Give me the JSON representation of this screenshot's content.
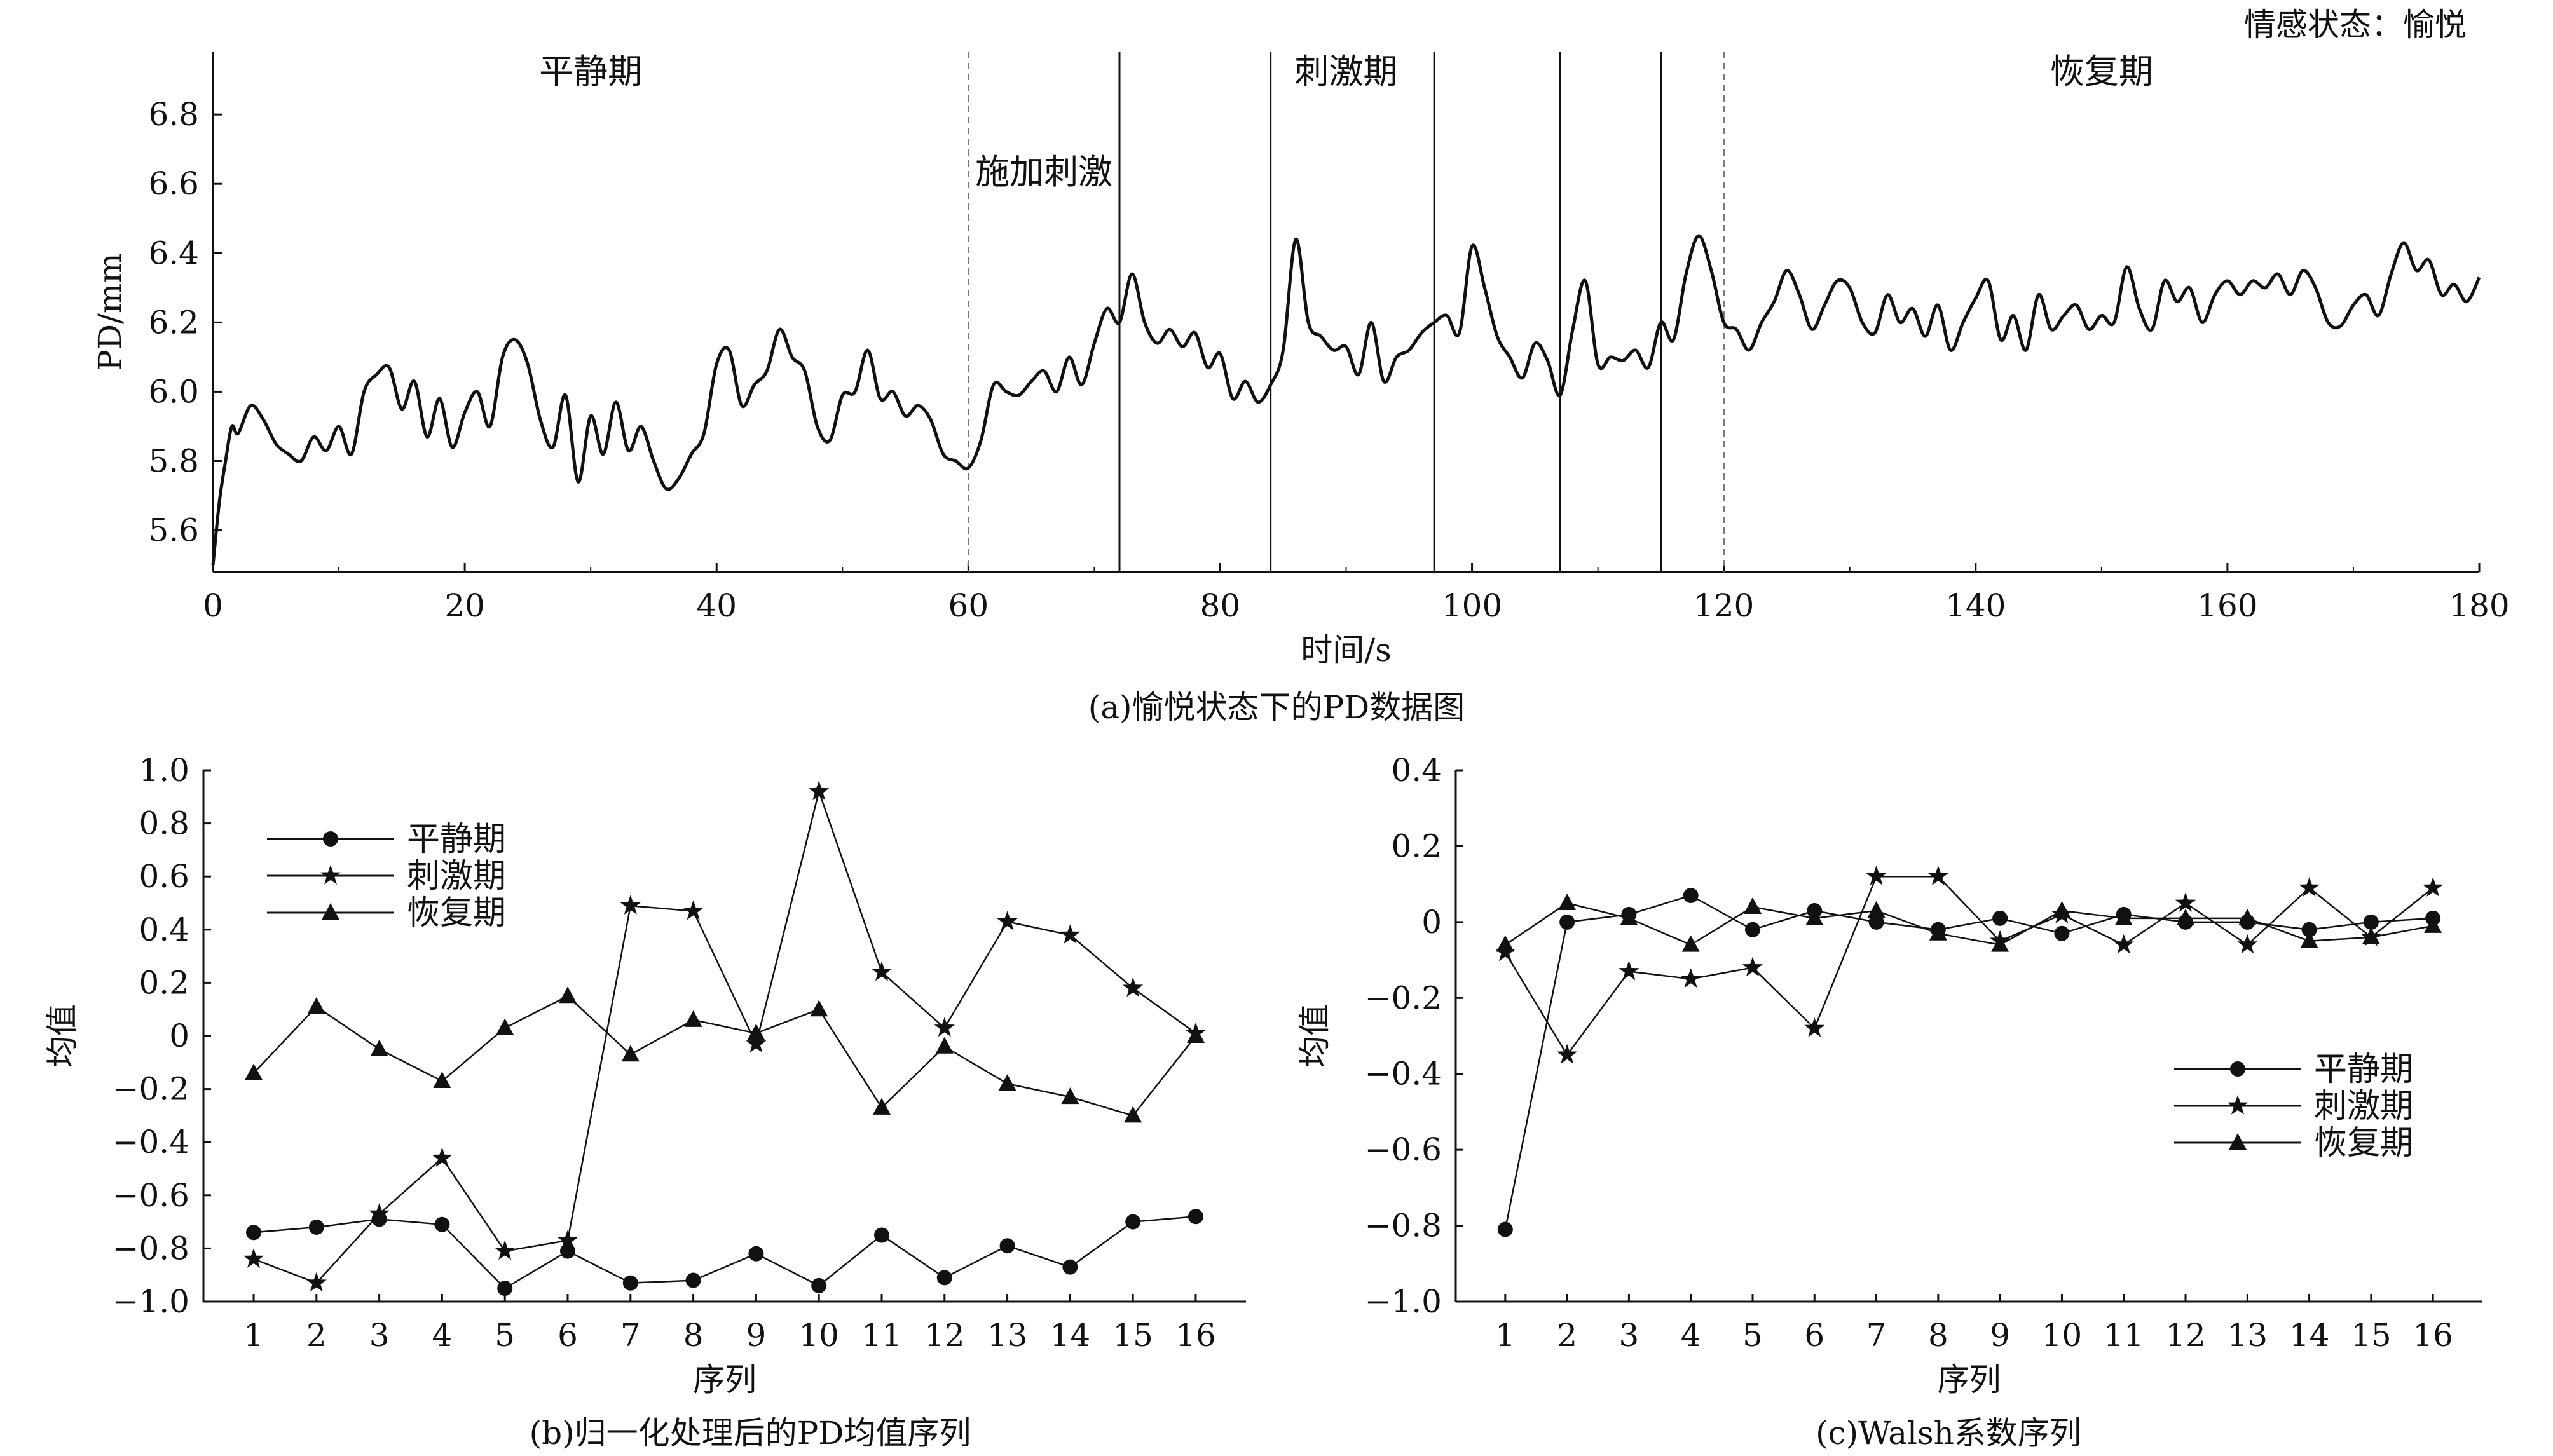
{
  "header": {
    "emotion_state": "情感状态：愉悦"
  },
  "chart_data": [
    {
      "id": "a",
      "type": "line",
      "caption": "(a)愉悦状态下的PD数据图",
      "xlabel": "时间/s",
      "ylabel": "PD/mm",
      "xlim": [
        0,
        180
      ],
      "ylim": [
        5.48,
        6.98
      ],
      "xticks": [
        0,
        20,
        40,
        60,
        80,
        100,
        120,
        140,
        160,
        180
      ],
      "yticks": [
        5.6,
        5.8,
        6.0,
        6.2,
        6.4,
        6.6,
        6.8
      ],
      "phase_labels": [
        {
          "text": "平静期",
          "x": 30,
          "y": 6.89
        },
        {
          "text": "施加刺激",
          "x": 66,
          "y": 6.6
        },
        {
          "text": "刺激期",
          "x": 90,
          "y": 6.89
        },
        {
          "text": "恢复期",
          "x": 150,
          "y": 6.89
        }
      ],
      "dashed_markers": [
        60,
        120
      ],
      "solid_markers": [
        72,
        84,
        97,
        107,
        115
      ],
      "series": [
        {
          "x": [
            0,
            0.5,
            1,
            1.5,
            2,
            3,
            4,
            5,
            6,
            7,
            8,
            9,
            10,
            11,
            12,
            13,
            14,
            15,
            16,
            17,
            18,
            19,
            20,
            21,
            22,
            23,
            24,
            25,
            26,
            27,
            28,
            29,
            30,
            31,
            32,
            33,
            34,
            35,
            36,
            37,
            38,
            39,
            40,
            41,
            42,
            43,
            44,
            45,
            46,
            47,
            48,
            49,
            50,
            51,
            52,
            53,
            54,
            55,
            56,
            57,
            58,
            59,
            60,
            61,
            62,
            63,
            64,
            65,
            66,
            67,
            68,
            69,
            70,
            71,
            72,
            73,
            74,
            75,
            76,
            77,
            78,
            79,
            80,
            81,
            82,
            83,
            84,
            85,
            86,
            87,
            88,
            89,
            90,
            91,
            92,
            93,
            94,
            95,
            96,
            97,
            98,
            99,
            100,
            101,
            102,
            103,
            104,
            105,
            106,
            107,
            108,
            109,
            110,
            111,
            112,
            113,
            114,
            115,
            116,
            117,
            118,
            119,
            120,
            121,
            122,
            123,
            124,
            125,
            126,
            127,
            128,
            129,
            130,
            131,
            132,
            133,
            134,
            135,
            136,
            137,
            138,
            139,
            140,
            141,
            142,
            143,
            144,
            145,
            146,
            147,
            148,
            149,
            150,
            151,
            152,
            153,
            154,
            155,
            156,
            157,
            158,
            159,
            160,
            161,
            162,
            163,
            164,
            165,
            166,
            167,
            168,
            169,
            170,
            171,
            172,
            173,
            174,
            175,
            176,
            177,
            178,
            179,
            180
          ],
          "y": [
            5.5,
            5.68,
            5.8,
            5.9,
            5.88,
            5.96,
            5.92,
            5.85,
            5.82,
            5.8,
            5.87,
            5.83,
            5.9,
            5.82,
            6.0,
            6.05,
            6.07,
            5.95,
            6.03,
            5.87,
            5.98,
            5.84,
            5.94,
            6.0,
            5.9,
            6.1,
            6.15,
            6.08,
            5.92,
            5.84,
            5.99,
            5.74,
            5.93,
            5.82,
            5.97,
            5.83,
            5.9,
            5.8,
            5.72,
            5.75,
            5.82,
            5.88,
            6.08,
            6.12,
            5.96,
            6.02,
            6.06,
            6.18,
            6.1,
            6.06,
            5.9,
            5.86,
            5.99,
            6.0,
            6.12,
            5.98,
            6.0,
            5.93,
            5.96,
            5.92,
            5.82,
            5.8,
            5.78,
            5.86,
            6.02,
            6.0,
            5.99,
            6.03,
            6.06,
            6.0,
            6.1,
            6.02,
            6.14,
            6.24,
            6.2,
            6.34,
            6.2,
            6.14,
            6.18,
            6.13,
            6.17,
            6.07,
            6.11,
            5.98,
            6.03,
            5.97,
            6.02,
            6.12,
            6.44,
            6.2,
            6.16,
            6.12,
            6.13,
            6.05,
            6.2,
            6.03,
            6.1,
            6.12,
            6.17,
            6.2,
            6.22,
            6.17,
            6.42,
            6.3,
            6.16,
            6.1,
            6.04,
            6.14,
            6.09,
            5.99,
            6.18,
            6.32,
            6.08,
            6.1,
            6.09,
            6.12,
            6.07,
            6.2,
            6.15,
            6.34,
            6.45,
            6.35,
            6.2,
            6.18,
            6.12,
            6.2,
            6.26,
            6.35,
            6.28,
            6.18,
            6.25,
            6.32,
            6.3,
            6.2,
            6.17,
            6.28,
            6.2,
            6.24,
            6.16,
            6.25,
            6.12,
            6.2,
            6.27,
            6.32,
            6.15,
            6.22,
            6.12,
            6.28,
            6.18,
            6.22,
            6.25,
            6.18,
            6.22,
            6.2,
            6.36,
            6.24,
            6.18,
            6.32,
            6.26,
            6.3,
            6.2,
            6.28,
            6.32,
            6.28,
            6.32,
            6.3,
            6.34,
            6.28,
            6.35,
            6.3,
            6.2,
            6.19,
            6.25,
            6.28,
            6.22,
            6.34,
            6.43,
            6.35,
            6.38,
            6.28,
            6.31,
            6.26,
            6.33
          ]
        }
      ]
    },
    {
      "id": "b",
      "type": "line",
      "caption": "(b)归一化处理后的PD均值序列",
      "xlabel": "序列",
      "ylabel": "均值",
      "xlim": [
        0.2,
        16.8
      ],
      "ylim": [
        -1.0,
        1.0
      ],
      "categories": [
        1,
        2,
        3,
        4,
        5,
        6,
        7,
        8,
        9,
        10,
        11,
        12,
        13,
        14,
        15,
        16
      ],
      "yticks": [
        -1.0,
        -0.8,
        -0.6,
        -0.4,
        -0.2,
        0,
        0.2,
        0.4,
        0.6,
        0.8,
        1.0
      ],
      "ytick_labels": [
        "−1.0",
        "−0.8",
        "−0.6",
        "−0.4",
        "−0.2",
        "0",
        "0.2",
        "0.4",
        "0.6",
        "0.8",
        "1.0"
      ],
      "legend_position": "top-left",
      "series": [
        {
          "name": "平静期",
          "marker": "circle",
          "values": [
            -0.74,
            -0.72,
            -0.69,
            -0.71,
            -0.95,
            -0.81,
            -0.93,
            -0.92,
            -0.82,
            -0.94,
            -0.75,
            -0.91,
            -0.79,
            -0.87,
            -0.7,
            -0.68
          ]
        },
        {
          "name": "刺激期",
          "marker": "star",
          "values": [
            -0.84,
            -0.93,
            -0.67,
            -0.46,
            -0.81,
            -0.77,
            0.49,
            0.47,
            -0.03,
            0.92,
            0.24,
            0.03,
            0.43,
            0.38,
            0.18,
            0.01
          ]
        },
        {
          "name": "恢复期",
          "marker": "triangle",
          "values": [
            -0.14,
            0.11,
            -0.05,
            -0.17,
            0.03,
            0.15,
            -0.07,
            0.06,
            0.01,
            0.1,
            -0.27,
            -0.04,
            -0.18,
            -0.23,
            -0.3,
            0.0
          ]
        }
      ]
    },
    {
      "id": "c",
      "type": "line",
      "caption": "(c)Walsh系数序列",
      "xlabel": "序列",
      "ylabel": "均值",
      "xlim": [
        0.2,
        16.8
      ],
      "ylim": [
        -1.0,
        0.4
      ],
      "categories": [
        1,
        2,
        3,
        4,
        5,
        6,
        7,
        8,
        9,
        10,
        11,
        12,
        13,
        14,
        15,
        16
      ],
      "yticks": [
        -1.0,
        -0.8,
        -0.6,
        -0.4,
        -0.2,
        0,
        0.2,
        0.4
      ],
      "ytick_labels": [
        "−1.0",
        "−0.8",
        "−0.6",
        "−0.4",
        "−0.2",
        "0",
        "0.2",
        "0.4"
      ],
      "legend_position": "center-right",
      "series": [
        {
          "name": "平静期",
          "marker": "circle",
          "values": [
            -0.81,
            0.0,
            0.02,
            0.07,
            -0.02,
            0.03,
            0.0,
            -0.02,
            0.01,
            -0.03,
            0.02,
            0.0,
            0.0,
            -0.02,
            0.0,
            0.01
          ]
        },
        {
          "name": "刺激期",
          "marker": "star",
          "values": [
            -0.08,
            -0.35,
            -0.13,
            -0.15,
            -0.12,
            -0.28,
            0.12,
            0.12,
            -0.05,
            0.02,
            -0.06,
            0.05,
            -0.06,
            0.09,
            -0.04,
            0.09
          ]
        },
        {
          "name": "恢复期",
          "marker": "triangle",
          "values": [
            -0.06,
            0.05,
            0.01,
            -0.06,
            0.04,
            0.01,
            0.03,
            -0.03,
            -0.06,
            0.03,
            0.01,
            0.01,
            0.01,
            -0.05,
            -0.04,
            -0.01
          ]
        }
      ]
    }
  ]
}
